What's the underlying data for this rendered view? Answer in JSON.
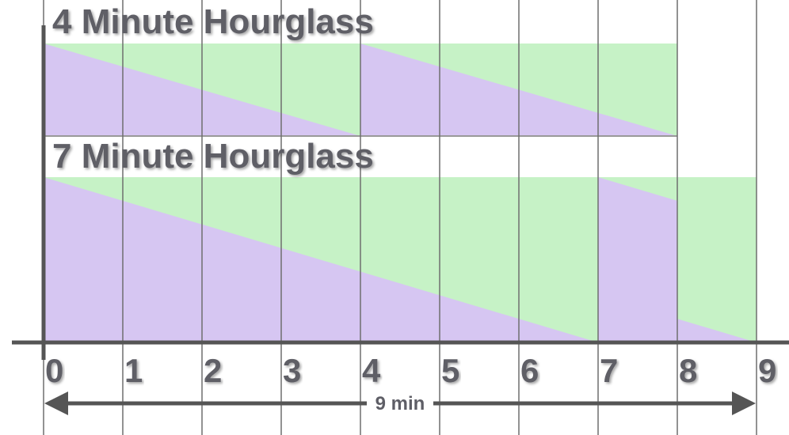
{
  "colors": {
    "sand": "#d6c6f2",
    "empty": "#c6f2c6",
    "grid": "#6e6e6e",
    "axis": "#555555",
    "text": "#5e5e66"
  },
  "axis": {
    "min": 0,
    "max": 9,
    "ticks": [
      "0",
      "1",
      "2",
      "3",
      "4",
      "5",
      "6",
      "7",
      "8",
      "9"
    ]
  },
  "hourglasses": [
    {
      "title": "4 Minute Hourglass",
      "capacity": 4,
      "segments": [
        {
          "start": 0,
          "end": 4,
          "fill_start": 1,
          "fill_end": 0
        },
        {
          "start": 4,
          "end": 8,
          "fill_start": 1,
          "fill_end": 0
        }
      ]
    },
    {
      "title": "7 Minute Hourglass",
      "capacity": 7,
      "segments": [
        {
          "start": 0,
          "end": 7,
          "fill_start": 1,
          "fill_end": 0
        },
        {
          "start": 7,
          "end": 8,
          "fill_start": 1,
          "fill_end": 0.857
        },
        {
          "start": 8,
          "end": 9,
          "fill_start": 0.143,
          "fill_end": 0
        }
      ]
    }
  ],
  "duration": {
    "label": "9 min",
    "from": 0,
    "to": 9
  }
}
